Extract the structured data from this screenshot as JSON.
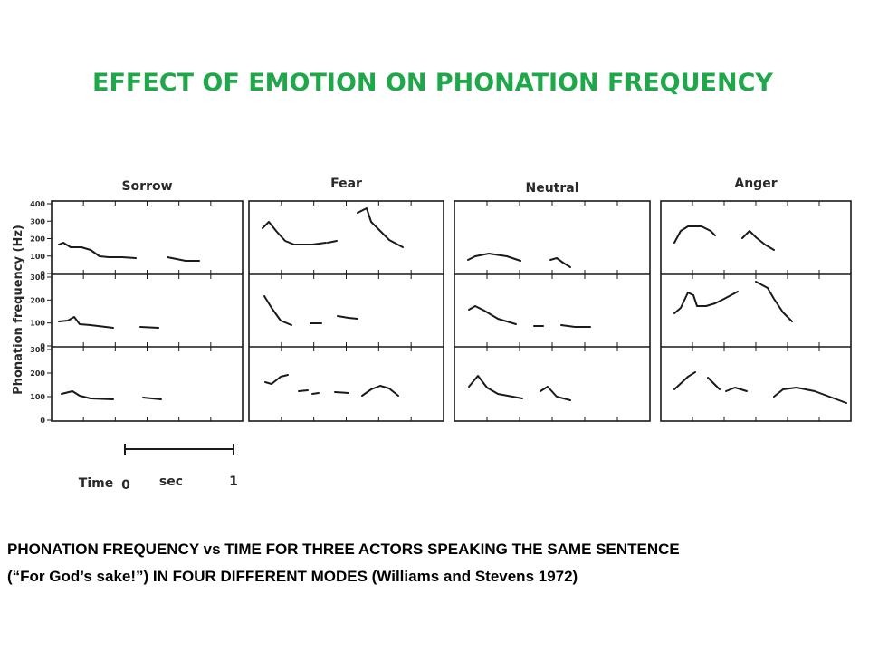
{
  "header": {
    "title": "EFFECT OF EMOTION ON PHONATION FREQUENCY"
  },
  "figure": {
    "panels": [
      "Sorrow",
      "Fear",
      "Neutral",
      "Anger"
    ],
    "y_axis_label": "Phonation frequency (Hz)",
    "row_ticks": [
      [
        "400",
        "300",
        "200",
        "100",
        "0"
      ],
      [
        "300",
        "200",
        "100",
        "0"
      ],
      [
        "300",
        "200",
        "100",
        "0"
      ]
    ],
    "time_axis": {
      "label": "Time",
      "start": "0",
      "unit": "sec",
      "end": "1"
    }
  },
  "caption": {
    "lines": [
      "PHONATION FREQUENCY vs TIME FOR THREE ACTORS SPEAKING THE SAME SENTENCE",
      "(“For God’s sake!”) IN FOUR DIFFERENT MODES  (Williams and Stevens 1972)"
    ]
  }
}
